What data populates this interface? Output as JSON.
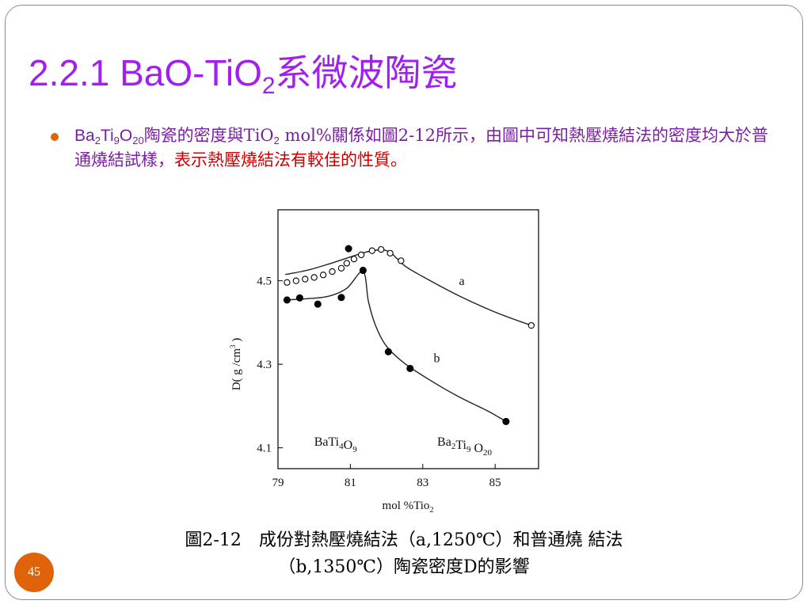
{
  "slide": {
    "title_main": "2.2.1 BaO-TiO",
    "title_sub": "2",
    "title_rest": "系微波陶瓷",
    "page_number": "45"
  },
  "bullet": {
    "t1": "Ba",
    "s1": "2",
    "t2": "Ti",
    "s2": "9",
    "t3": "O",
    "s3": "20",
    "t4": "陶瓷的密度與TiO",
    "s4": "2",
    "t5": " mol%關係如圖2-12所示，由圖中可知熱壓燒結法的密度均大於普通燒結試樣，",
    "t6": "表示熱壓燒結法有較佳的性質。"
  },
  "caption": {
    "line1": "圖2-12　成份對熱壓燒結法（a,1250℃）和普通燒 結法",
    "line2": "（b,1350℃）陶瓷密度D的影響"
  },
  "colors": {
    "title": "#a020f0",
    "bullet_text": "#7a1fa2",
    "bullet_highlight": "#cc0000",
    "accent": "#e0630a"
  },
  "chart_data": {
    "type": "scatter",
    "xlim": [
      79,
      86.2
    ],
    "ylim": [
      4.05,
      4.67
    ],
    "x_ticks": [
      79,
      81,
      83,
      85
    ],
    "x_tick_labels": [
      "79",
      "81",
      "83",
      "85"
    ],
    "y_ticks": [
      4.5,
      4.3,
      4.1
    ],
    "y_tick_labels": [
      "4.5",
      "4.3",
      "4.1"
    ],
    "xlabel": "mol %Tio",
    "xlabel_sub": "2",
    "ylabel": "D( g /cm",
    "ylabel_sup": "3",
    "ylabel_end": " )",
    "grid": false,
    "series": [
      {
        "name": "a",
        "marker": "open-circle",
        "points": [
          [
            79.25,
            4.496
          ],
          [
            79.5,
            4.5
          ],
          [
            79.75,
            4.504
          ],
          [
            80.0,
            4.508
          ],
          [
            80.25,
            4.514
          ],
          [
            80.5,
            4.522
          ],
          [
            80.75,
            4.53
          ],
          [
            80.9,
            4.542
          ],
          [
            81.1,
            4.552
          ],
          [
            81.3,
            4.562
          ],
          [
            81.6,
            4.572
          ],
          [
            81.85,
            4.575
          ],
          [
            82.1,
            4.566
          ],
          [
            82.4,
            4.548
          ],
          [
            86.0,
            4.393
          ]
        ],
        "curve": [
          [
            79.2,
            4.515
          ],
          [
            79.8,
            4.525
          ],
          [
            80.4,
            4.54
          ],
          [
            81.0,
            4.557
          ],
          [
            81.4,
            4.568
          ],
          [
            81.8,
            4.574
          ],
          [
            82.1,
            4.568
          ],
          [
            82.5,
            4.536
          ],
          [
            83.0,
            4.51
          ],
          [
            84.0,
            4.464
          ],
          [
            85.0,
            4.425
          ],
          [
            86.0,
            4.393
          ]
        ],
        "label_at": [
          84.0,
          4.49
        ]
      },
      {
        "name": "b",
        "marker": "filled-circle",
        "points": [
          [
            79.25,
            4.454
          ],
          [
            79.6,
            4.459
          ],
          [
            80.1,
            4.444
          ],
          [
            80.75,
            4.46
          ],
          [
            80.95,
            4.577
          ],
          [
            81.35,
            4.525
          ],
          [
            82.05,
            4.33
          ],
          [
            82.65,
            4.29
          ],
          [
            85.3,
            4.163
          ]
        ],
        "curve": [
          [
            79.2,
            4.454
          ],
          [
            79.8,
            4.457
          ],
          [
            80.4,
            4.463
          ],
          [
            80.9,
            4.482
          ],
          [
            81.35,
            4.522
          ],
          [
            81.5,
            4.45
          ],
          [
            81.7,
            4.392
          ],
          [
            82.0,
            4.343
          ],
          [
            82.5,
            4.302
          ],
          [
            83.2,
            4.262
          ],
          [
            84.0,
            4.222
          ],
          [
            84.8,
            4.188
          ],
          [
            85.3,
            4.163
          ]
        ],
        "label_at": [
          83.3,
          4.305
        ]
      }
    ],
    "annotations": [
      {
        "text": "BaTi",
        "sub": "4",
        "text2": "O",
        "sub2": "9",
        "at": [
          80.0,
          4.105
        ]
      },
      {
        "text": "Ba",
        "sub": "2",
        "text2": "Ti",
        "sub2": "9",
        "text3": " O",
        "sub3": "20",
        "at": [
          83.4,
          4.105
        ]
      }
    ]
  }
}
